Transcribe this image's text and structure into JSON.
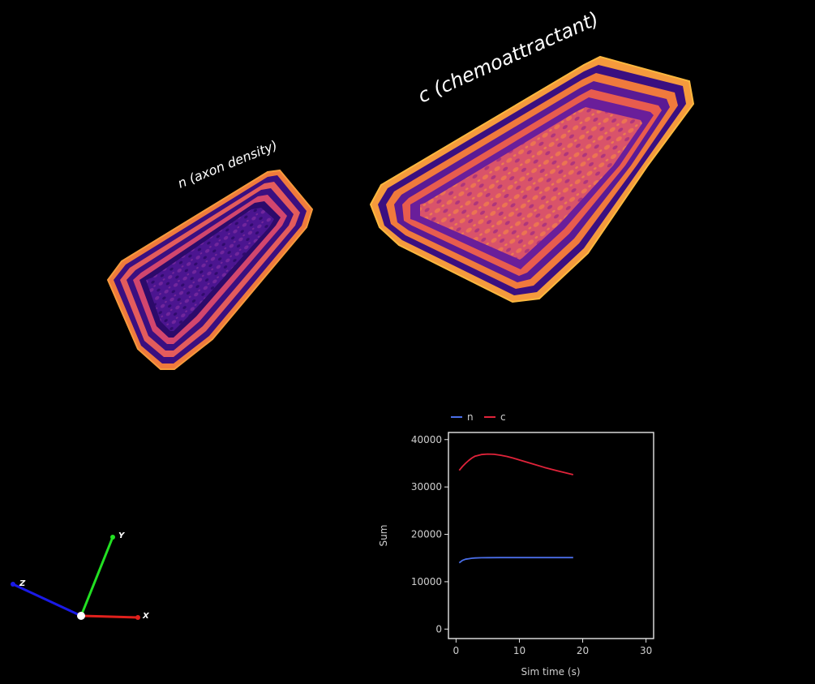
{
  "scene": {
    "surface_n_label": "n (axon density)",
    "surface_c_label": "c (chemoattractant)",
    "colormap": [
      "#2a0a6b",
      "#6a1e9a",
      "#b0358a",
      "#e35c5c",
      "#f98f3c",
      "#fcc03f"
    ]
  },
  "axes_gizmo": {
    "x_label": "X",
    "y_label": "Y",
    "z_label": "Z",
    "x_color": "#e0201c",
    "y_color": "#22e022",
    "z_color": "#1a1ae6"
  },
  "chart_data": {
    "type": "line",
    "xlabel": "Sim time (s)",
    "ylabel": "Sum",
    "xlim": [
      -1.2,
      31.2
    ],
    "ylim": [
      -2000,
      41500
    ],
    "xticks": [
      0,
      10,
      20,
      30
    ],
    "yticks": [
      0,
      10000,
      20000,
      30000,
      40000
    ],
    "legend_position": "top-left",
    "series": [
      {
        "name": "n",
        "color": "#4a6ee8",
        "x": [
          0.5,
          1,
          1.5,
          2,
          2.5,
          3,
          4,
          5,
          7,
          10,
          13,
          16,
          18.5
        ],
        "y": [
          14000,
          14500,
          14750,
          14850,
          14950,
          15000,
          15050,
          15080,
          15100,
          15100,
          15100,
          15100,
          15100
        ]
      },
      {
        "name": "c",
        "color": "#e0233a",
        "x": [
          0.5,
          1,
          1.5,
          2,
          2.5,
          3,
          4,
          5,
          6,
          7,
          8,
          9,
          10,
          12,
          14,
          16,
          18.5
        ],
        "y": [
          33500,
          34300,
          35000,
          35600,
          36100,
          36500,
          36850,
          36950,
          36900,
          36700,
          36450,
          36100,
          35700,
          34900,
          34100,
          33400,
          32600
        ]
      }
    ]
  }
}
